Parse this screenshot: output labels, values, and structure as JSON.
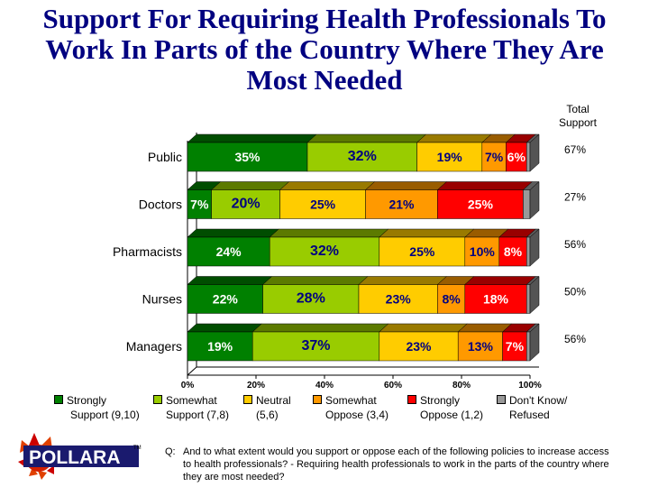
{
  "title": "Support For Requiring Health Professionals To Work In Parts of the Country Where They Are Most Needed",
  "total_support_header": "Total\nSupport",
  "chart_data": {
    "type": "bar",
    "orientation": "horizontal",
    "stacked": true,
    "title": "Support For Requiring Health Professionals To Work In Parts of the Country Where They Are Most Needed",
    "categories": [
      "Public",
      "Doctors",
      "Pharmacists",
      "Nurses",
      "Managers"
    ],
    "series": [
      {
        "name": "Strongly Support (9,10)",
        "color": "#008000",
        "values": [
          35,
          7,
          24,
          22,
          19
        ]
      },
      {
        "name": "Somewhat Support (7,8)",
        "color": "#99cc00",
        "values": [
          32,
          20,
          32,
          28,
          37
        ]
      },
      {
        "name": "Neutral (5,6)",
        "color": "#ffcc00",
        "values": [
          19,
          25,
          25,
          23,
          23
        ]
      },
      {
        "name": "Somewhat Oppose (3,4)",
        "color": "#ff9900",
        "values": [
          7,
          21,
          10,
          8,
          13
        ]
      },
      {
        "name": "Strongly Oppose (1,2)",
        "color": "#ff0000",
        "values": [
          6,
          25,
          8,
          18,
          7
        ]
      },
      {
        "name": "Don't Know/ Refused",
        "color": "#999999",
        "values": [
          1,
          2,
          1,
          1,
          1
        ]
      }
    ],
    "total_support": [
      "67%",
      "27%",
      "56%",
      "50%",
      "56%"
    ],
    "x_ticks": [
      "0%",
      "20%",
      "40%",
      "60%",
      "80%",
      "100%"
    ],
    "xlim": [
      0,
      100
    ],
    "grid": false,
    "legend_position": "bottom"
  },
  "legend": [
    {
      "line1": "Strongly",
      "line2": "Support (9,10)"
    },
    {
      "line1": "Somewhat",
      "line2": "Support (7,8)"
    },
    {
      "line1": "Neutral",
      "line2": "(5,6)"
    },
    {
      "line1": "Somewhat",
      "line2": "Oppose (3,4)"
    },
    {
      "line1": "Strongly",
      "line2": "Oppose (1,2)"
    },
    {
      "line1": "Don't Know/",
      "line2": "Refused"
    }
  ],
  "logo_text": "POLLARA",
  "logo_tm": "TM",
  "question_label": "Q:",
  "question_text": "And to what extent would you support or oppose each of the following policies to increase access to health professionals? - Requiring health professionals to work in the parts of the country where they are most needed?"
}
